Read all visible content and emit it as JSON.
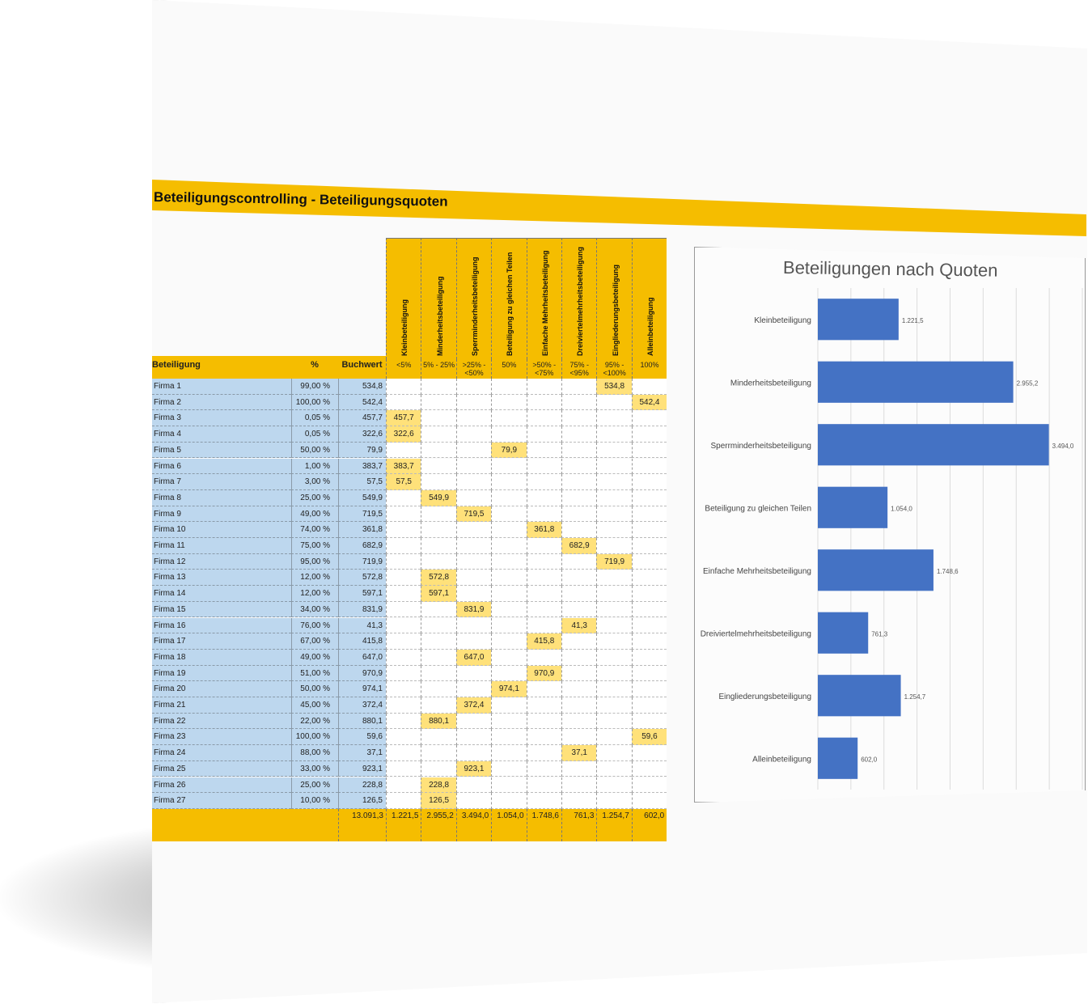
{
  "title": "Beteiligungscontrolling - Beteiligungsquoten",
  "table": {
    "col_beteiligung": "Beteiligung",
    "col_pct": "%",
    "col_buchwert": "Buchwert",
    "categories": [
      {
        "name": "Kleinbeteiligung",
        "range": "<5%"
      },
      {
        "name": "Minderheitsbeteiligung",
        "range": "5% - 25%"
      },
      {
        "name": "Sperrminderheitsbeteiligung",
        "range": ">25% - <50%"
      },
      {
        "name": "Beteiligung zu gleichen Teilen",
        "range": "50%"
      },
      {
        "name": "Einfache Mehrheitsbeteiligung",
        "range": ">50% - <75%"
      },
      {
        "name": "Dreiviertelmehrheitsbeteiligung",
        "range": "75% - <95%"
      },
      {
        "name": "Eingliederungsbeteiligung",
        "range": "95% - <100%"
      },
      {
        "name": "Alleinbeteiligung",
        "range": "100%"
      }
    ],
    "rows": [
      {
        "name": "Firma 1",
        "pct": "99,00 %",
        "bw": "534,8",
        "cat": 6
      },
      {
        "name": "Firma 2",
        "pct": "100,00 %",
        "bw": "542,4",
        "cat": 7
      },
      {
        "name": "Firma 3",
        "pct": "0,05 %",
        "bw": "457,7",
        "cat": 0
      },
      {
        "name": "Firma 4",
        "pct": "0,05 %",
        "bw": "322,6",
        "cat": 0
      },
      {
        "name": "Firma 5",
        "pct": "50,00 %",
        "bw": "79,9",
        "cat": 3
      },
      {
        "name": "Firma 6",
        "pct": "1,00 %",
        "bw": "383,7",
        "cat": 0
      },
      {
        "name": "Firma 7",
        "pct": "3,00 %",
        "bw": "57,5",
        "cat": 0
      },
      {
        "name": "Firma 8",
        "pct": "25,00 %",
        "bw": "549,9",
        "cat": 1
      },
      {
        "name": "Firma 9",
        "pct": "49,00 %",
        "bw": "719,5",
        "cat": 2
      },
      {
        "name": "Firma 10",
        "pct": "74,00 %",
        "bw": "361,8",
        "cat": 4
      },
      {
        "name": "Firma 11",
        "pct": "75,00 %",
        "bw": "682,9",
        "cat": 5
      },
      {
        "name": "Firma 12",
        "pct": "95,00 %",
        "bw": "719,9",
        "cat": 6
      },
      {
        "name": "Firma 13",
        "pct": "12,00 %",
        "bw": "572,8",
        "cat": 1
      },
      {
        "name": "Firma 14",
        "pct": "12,00 %",
        "bw": "597,1",
        "cat": 1
      },
      {
        "name": "Firma 15",
        "pct": "34,00 %",
        "bw": "831,9",
        "cat": 2
      },
      {
        "name": "Firma 16",
        "pct": "76,00 %",
        "bw": "41,3",
        "cat": 5
      },
      {
        "name": "Firma 17",
        "pct": "67,00 %",
        "bw": "415,8",
        "cat": 4
      },
      {
        "name": "Firma 18",
        "pct": "49,00 %",
        "bw": "647,0",
        "cat": 2
      },
      {
        "name": "Firma 19",
        "pct": "51,00 %",
        "bw": "970,9",
        "cat": 4
      },
      {
        "name": "Firma 20",
        "pct": "50,00 %",
        "bw": "974,1",
        "cat": 3
      },
      {
        "name": "Firma 21",
        "pct": "45,00 %",
        "bw": "372,4",
        "cat": 2
      },
      {
        "name": "Firma 22",
        "pct": "22,00 %",
        "bw": "880,1",
        "cat": 1
      },
      {
        "name": "Firma 23",
        "pct": "100,00 %",
        "bw": "59,6",
        "cat": 7
      },
      {
        "name": "Firma 24",
        "pct": "88,00 %",
        "bw": "37,1",
        "cat": 5
      },
      {
        "name": "Firma 25",
        "pct": "33,00 %",
        "bw": "923,1",
        "cat": 2
      },
      {
        "name": "Firma 26",
        "pct": "25,00 %",
        "bw": "228,8",
        "cat": 1
      },
      {
        "name": "Firma 27",
        "pct": "10,00 %",
        "bw": "126,5",
        "cat": 1
      }
    ],
    "totals": {
      "buchwert": "13.091,3",
      "categories": [
        "1.221,5",
        "2.955,2",
        "3.494,0",
        "1.054,0",
        "1.748,6",
        "761,3",
        "1.254,7",
        "602,0"
      ]
    }
  },
  "chart_data": {
    "type": "bar",
    "orientation": "horizontal",
    "title": "Beteiligungen nach Quoten",
    "categories": [
      "Kleinbeteiligung",
      "Minderheitsbeteiligung",
      "Sperrminderheitsbeteiligung",
      "Beteiligung zu gleichen Teilen",
      "Einfache Mehrheitsbeteiligung",
      "Dreiviertelmehrheitsbeteiligung",
      "Eingliederungsbeteiligung",
      "Alleinbeteiligung"
    ],
    "values": [
      1221.5,
      2955.2,
      3494.0,
      1054.0,
      1748.6,
      761.3,
      1254.7,
      602.0
    ],
    "value_labels": [
      "1.221,5",
      "2.955,2",
      "3.494,0",
      "1.054,0",
      "1.748,6",
      "761,3",
      "1.254,7",
      "602,0"
    ],
    "xlim": [
      0,
      4000
    ],
    "grid": true,
    "bar_color": "#4472c4"
  }
}
